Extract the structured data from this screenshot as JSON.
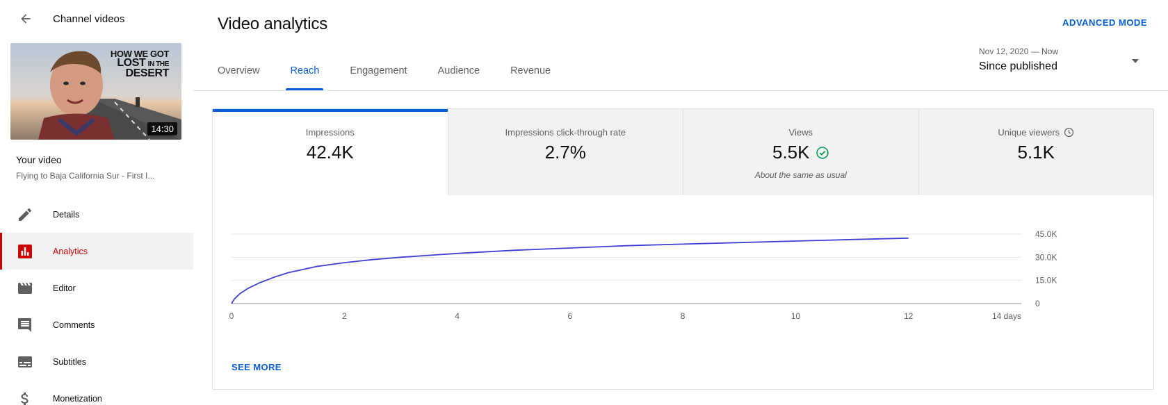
{
  "sidebar": {
    "back_label": "Channel videos",
    "thumbnail": {
      "title_line1": "HOW WE GOT",
      "title_line2a": "LOST",
      "title_line2b": "IN THE",
      "title_line3": "DESERT",
      "duration": "14:30"
    },
    "your_video_label": "Your video",
    "video_title": "Flying to Baja California Sur - First I...",
    "items": [
      {
        "label": "Details",
        "icon": "pencil-icon"
      },
      {
        "label": "Analytics",
        "icon": "analytics-icon"
      },
      {
        "label": "Editor",
        "icon": "clapperboard-icon"
      },
      {
        "label": "Comments",
        "icon": "comment-icon"
      },
      {
        "label": "Subtitles",
        "icon": "subtitles-icon"
      },
      {
        "label": "Monetization",
        "icon": "dollar-icon"
      }
    ],
    "active_item": "Analytics"
  },
  "header": {
    "title": "Video analytics",
    "advanced_mode": "ADVANCED MODE"
  },
  "tabs": [
    {
      "label": "Overview"
    },
    {
      "label": "Reach"
    },
    {
      "label": "Engagement"
    },
    {
      "label": "Audience"
    },
    {
      "label": "Revenue"
    }
  ],
  "active_tab": "Reach",
  "date_picker": {
    "range": "Nov 12, 2020 — Now",
    "value": "Since published"
  },
  "metrics": [
    {
      "label": "Impressions",
      "value": "42.4K"
    },
    {
      "label": "Impressions click-through rate",
      "value": "2.7%"
    },
    {
      "label": "Views",
      "value": "5.5K",
      "note": "About the same as usual",
      "icon": "check-circle-icon"
    },
    {
      "label": "Unique viewers",
      "value": "5.1K",
      "icon": "clock-icon"
    }
  ],
  "see_more": "SEE MORE",
  "colors": {
    "accent": "#065fd4",
    "active_nav": "#cc0000",
    "line": "#3f3fd6",
    "ok_green": "#0f9d58"
  },
  "chart_data": {
    "type": "line",
    "x_ticks": [
      "0",
      "2",
      "4",
      "6",
      "8",
      "10",
      "12",
      "14 days"
    ],
    "y_ticks": [
      "0",
      "15.0K",
      "30.0K",
      "45.0K"
    ],
    "xlim": [
      0,
      14
    ],
    "ylim": [
      0,
      45000
    ],
    "grid": true,
    "x": [
      0,
      0.05,
      0.15,
      0.3,
      0.5,
      0.75,
      1,
      1.5,
      2,
      2.5,
      3,
      4,
      5,
      6,
      7,
      8,
      9,
      10,
      11,
      12
    ],
    "y": [
      0,
      3000,
      6500,
      10000,
      13500,
      17000,
      20000,
      24000,
      26500,
      28500,
      30000,
      32500,
      34500,
      36000,
      37500,
      38500,
      39500,
      40500,
      41500,
      42400
    ]
  }
}
